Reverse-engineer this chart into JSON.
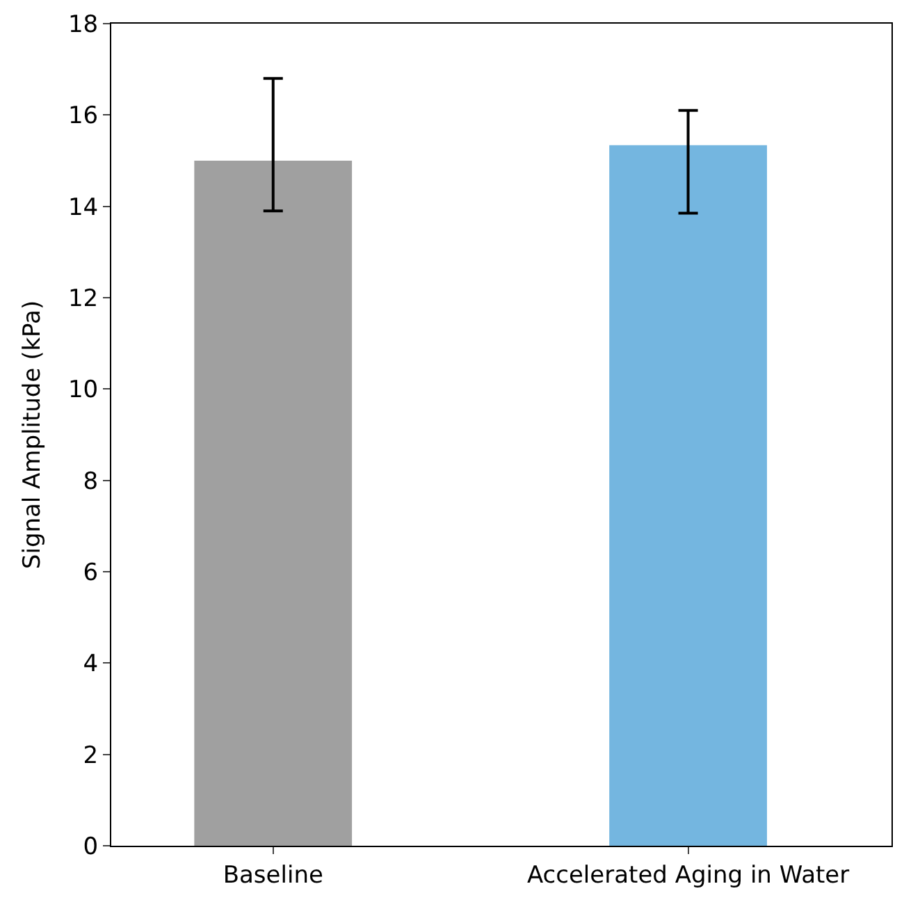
{
  "chart_data": {
    "type": "bar",
    "ylabel": "Signal Amplitude (kPa)",
    "categories": [
      "Baseline",
      "Accelerated Aging in Water"
    ],
    "values": [
      15.0,
      15.34
    ],
    "colors": [
      "#a0a0a0",
      "#74b6e0"
    ],
    "errors": [
      [
        13.9,
        16.8
      ],
      [
        13.85,
        16.1
      ]
    ],
    "ylim": [
      0,
      18
    ],
    "yticks": [
      0,
      2,
      4,
      6,
      8,
      10,
      12,
      14,
      16,
      18
    ],
    "legend": false
  }
}
